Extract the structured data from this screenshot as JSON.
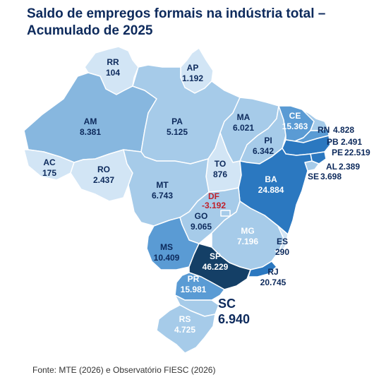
{
  "title": {
    "line1": "Saldo de empregos formais na indústria total –",
    "line2": "Acumulado de 2025"
  },
  "footer": "Fonte: MTE (2026) e Observatório FIESC (2026)",
  "colors": {
    "title": "#0d2a5c",
    "label_dark": "#0d2a5c",
    "label_light": "#ffffff",
    "label_negative": "#c0202a",
    "scale": [
      "#d2e5f5",
      "#a6cbe9",
      "#87b7df",
      "#5a9bd4",
      "#2b78c0",
      "#143f66"
    ]
  },
  "states": {
    "RR": {
      "name": "RR",
      "value": "104"
    },
    "AP": {
      "name": "AP",
      "value": "1.192"
    },
    "AM": {
      "name": "AM",
      "value": "8.381"
    },
    "PA": {
      "name": "PA",
      "value": "5.125"
    },
    "MA": {
      "name": "MA",
      "value": "6.021"
    },
    "CE": {
      "name": "CE",
      "value": "15.363"
    },
    "RN": {
      "name": "RN",
      "value": "4.828"
    },
    "PB": {
      "name": "PB",
      "value": "2.491"
    },
    "PE": {
      "name": "PE",
      "value": "22.519"
    },
    "PI": {
      "name": "PI",
      "value": "6.342"
    },
    "AL": {
      "name": "AL",
      "value": "2.389"
    },
    "SE": {
      "name": "SE",
      "value": "3.698"
    },
    "AC": {
      "name": "AC",
      "value": "175"
    },
    "RO": {
      "name": "RO",
      "value": "2.437"
    },
    "TO": {
      "name": "TO",
      "value": "876"
    },
    "BA": {
      "name": "BA",
      "value": "24.884"
    },
    "MT": {
      "name": "MT",
      "value": "6.743"
    },
    "DF": {
      "name": "DF",
      "value": "-3.192"
    },
    "GO": {
      "name": "GO",
      "value": "9.065"
    },
    "MG": {
      "name": "MG",
      "value": "7.196"
    },
    "ES": {
      "name": "ES",
      "value": "290"
    },
    "MS": {
      "name": "MS",
      "value": "10.409"
    },
    "SP": {
      "name": "SP",
      "value": "46.229"
    },
    "RJ": {
      "name": "RJ",
      "value": "20.745"
    },
    "PR": {
      "name": "PR",
      "value": "15.981"
    },
    "SC": {
      "name": "SC",
      "value": "6.940"
    },
    "RS": {
      "name": "RS",
      "value": "4.725"
    }
  }
}
